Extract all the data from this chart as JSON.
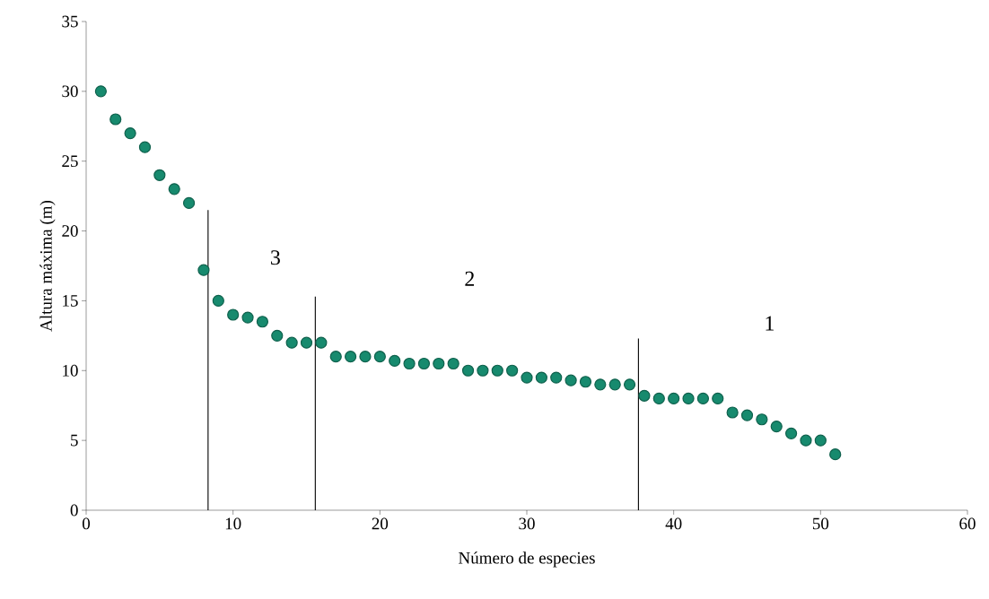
{
  "chart_data": {
    "type": "scatter",
    "xlabel": "Número de especies",
    "ylabel": "Altura máxima (m)",
    "xlim": [
      0,
      60
    ],
    "xticks": [
      0,
      10,
      20,
      30,
      40,
      50,
      60
    ],
    "ylim": [
      0,
      35
    ],
    "yticks": [
      0,
      5,
      10,
      15,
      20,
      25,
      30,
      35
    ],
    "grid": false,
    "marker": "circle",
    "series": [
      {
        "color": "#178a6e",
        "x": [
          1,
          2,
          3,
          4,
          5,
          6,
          7,
          8,
          9,
          10,
          11,
          12,
          13,
          14,
          15,
          16,
          17,
          18,
          19,
          20,
          21,
          22,
          23,
          24,
          25,
          26,
          27,
          28,
          29,
          30,
          31,
          32,
          33,
          34,
          35,
          36,
          37,
          38,
          39,
          40,
          41,
          42,
          43,
          44,
          45,
          46,
          47,
          48,
          49,
          50,
          51
        ],
        "values": [
          30,
          28,
          27,
          26,
          24,
          23,
          22,
          17.2,
          15,
          14,
          13.8,
          13.5,
          12.5,
          12,
          12,
          12,
          11,
          11,
          11,
          11,
          10.7,
          10.5,
          10.5,
          10.5,
          10.5,
          10,
          10,
          10,
          10,
          9.5,
          9.5,
          9.5,
          9.3,
          9.2,
          9,
          9,
          9,
          8.2,
          8,
          8,
          8,
          8,
          8,
          7,
          6.8,
          6.5,
          6,
          5.5,
          5,
          5,
          4
        ]
      },
      {
        "type": "line",
        "marker": "none",
        "color": "#000000",
        "x": [
          8.3,
          8.3
        ],
        "values": [
          0,
          21.5
        ]
      },
      {
        "type": "line",
        "marker": "none",
        "color": "#000000",
        "x": [
          15.6,
          15.6
        ],
        "values": [
          0,
          15.3
        ]
      },
      {
        "type": "line",
        "marker": "none",
        "color": "#000000",
        "x": [
          37.6,
          37.6
        ],
        "values": [
          0,
          12.3
        ]
      }
    ],
    "annotations": [
      "3",
      "2",
      "1"
    ]
  }
}
